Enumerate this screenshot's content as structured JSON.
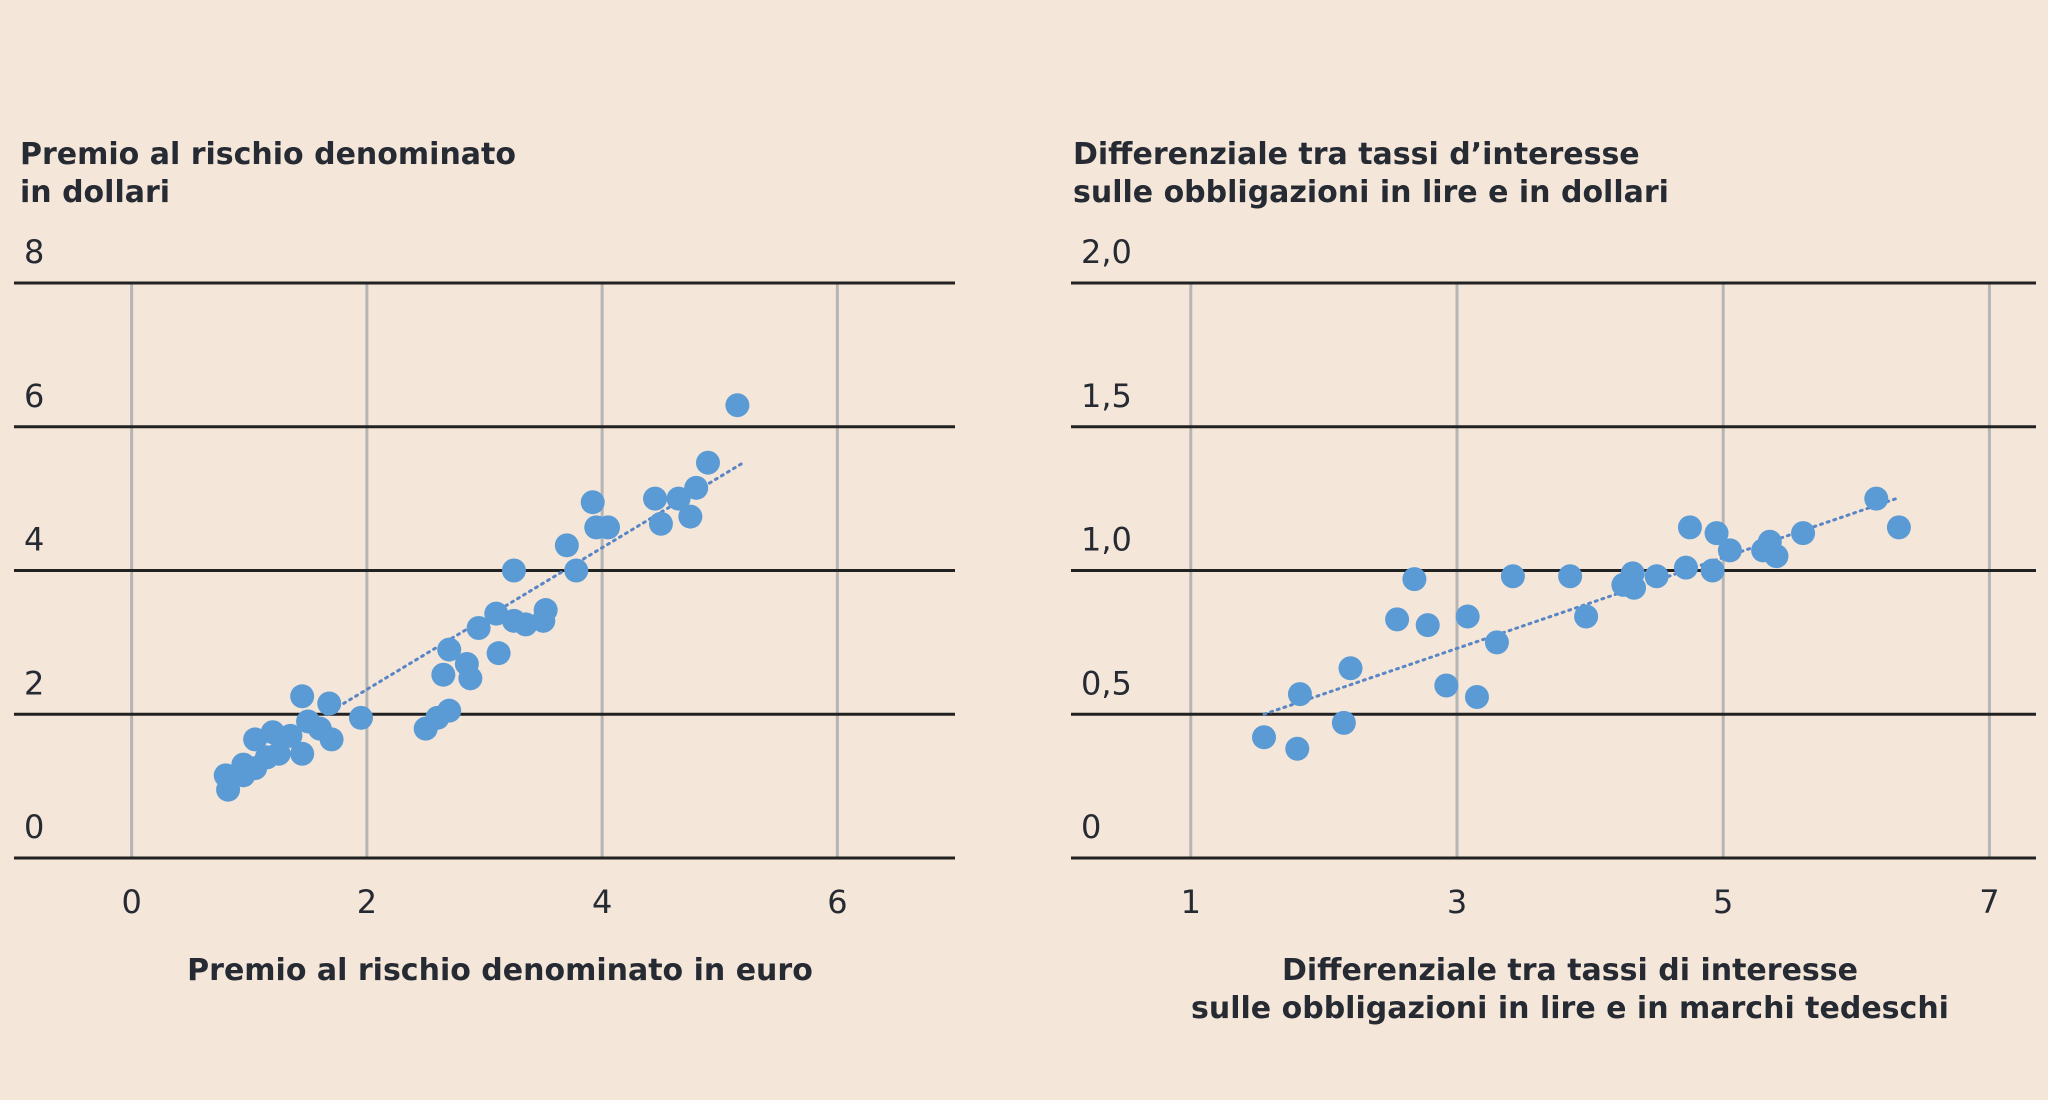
{
  "chart_data": [
    {
      "type": "scatter",
      "ylabel": "Premio al rischio denominato\nin dollari",
      "xlabel": "Premio al rischio denominato in euro",
      "xlim": [
        -1,
        7
      ],
      "ylim": [
        0,
        8
      ],
      "xticks": [
        "0",
        "2",
        "4",
        "6"
      ],
      "yticks": [
        "0",
        "2",
        "4",
        "6",
        "8"
      ],
      "grid": true,
      "trendline": {
        "style": "dotted",
        "x": [
          1.65,
          5.2
        ],
        "y": [
          2.0,
          5.5
        ]
      },
      "points": [
        {
          "x": 0.8,
          "y": 1.15
        },
        {
          "x": 0.82,
          "y": 0.95
        },
        {
          "x": 0.95,
          "y": 1.3
        },
        {
          "x": 0.95,
          "y": 1.15
        },
        {
          "x": 1.05,
          "y": 1.65
        },
        {
          "x": 1.05,
          "y": 1.25
        },
        {
          "x": 1.15,
          "y": 1.4
        },
        {
          "x": 1.2,
          "y": 1.75
        },
        {
          "x": 1.25,
          "y": 1.45
        },
        {
          "x": 1.35,
          "y": 1.7
        },
        {
          "x": 1.45,
          "y": 2.25
        },
        {
          "x": 1.45,
          "y": 1.45
        },
        {
          "x": 1.5,
          "y": 1.9
        },
        {
          "x": 1.6,
          "y": 1.8
        },
        {
          "x": 1.68,
          "y": 2.15
        },
        {
          "x": 1.7,
          "y": 1.65
        },
        {
          "x": 1.95,
          "y": 1.95
        },
        {
          "x": 2.5,
          "y": 1.8
        },
        {
          "x": 2.6,
          "y": 1.95
        },
        {
          "x": 2.65,
          "y": 2.55
        },
        {
          "x": 2.7,
          "y": 2.05
        },
        {
          "x": 2.7,
          "y": 2.9
        },
        {
          "x": 2.85,
          "y": 2.7
        },
        {
          "x": 2.88,
          "y": 2.5
        },
        {
          "x": 2.95,
          "y": 3.2
        },
        {
          "x": 3.1,
          "y": 3.4
        },
        {
          "x": 3.12,
          "y": 2.85
        },
        {
          "x": 3.25,
          "y": 4.0
        },
        {
          "x": 3.25,
          "y": 3.3
        },
        {
          "x": 3.35,
          "y": 3.25
        },
        {
          "x": 3.5,
          "y": 3.3
        },
        {
          "x": 3.52,
          "y": 3.45
        },
        {
          "x": 3.7,
          "y": 4.35
        },
        {
          "x": 3.78,
          "y": 4.0
        },
        {
          "x": 3.92,
          "y": 4.95
        },
        {
          "x": 3.95,
          "y": 4.6
        },
        {
          "x": 4.05,
          "y": 4.6
        },
        {
          "x": 4.45,
          "y": 5.0
        },
        {
          "x": 4.5,
          "y": 4.65
        },
        {
          "x": 4.65,
          "y": 5.0
        },
        {
          "x": 4.75,
          "y": 4.75
        },
        {
          "x": 4.8,
          "y": 5.15
        },
        {
          "x": 4.9,
          "y": 5.5
        },
        {
          "x": 5.15,
          "y": 6.3
        }
      ]
    },
    {
      "type": "scatter",
      "ylabel": "Differenziale tra tassi d’interesse\nsulle obbligazioni in lire e in dollari",
      "xlabel": "Differenziale tra tassi di interesse\nsulle obbligazioni in lire e in marchi tedeschi",
      "xlim": [
        0.1,
        7.35
      ],
      "ylim": [
        0,
        2.0
      ],
      "xticks": [
        "1",
        "3",
        "5",
        "7"
      ],
      "yticks": [
        "0",
        "0,5",
        "1,0",
        "1,5",
        "2,0"
      ],
      "grid": true,
      "trendline": {
        "style": "dotted",
        "x": [
          1.55,
          6.3
        ],
        "y": [
          0.5,
          1.25
        ]
      },
      "points": [
        {
          "x": 1.55,
          "y": 0.42
        },
        {
          "x": 1.8,
          "y": 0.38
        },
        {
          "x": 1.82,
          "y": 0.57
        },
        {
          "x": 2.15,
          "y": 0.47
        },
        {
          "x": 2.2,
          "y": 0.66
        },
        {
          "x": 2.55,
          "y": 0.83
        },
        {
          "x": 2.68,
          "y": 0.97
        },
        {
          "x": 2.78,
          "y": 0.81
        },
        {
          "x": 2.92,
          "y": 0.6
        },
        {
          "x": 3.08,
          "y": 0.84
        },
        {
          "x": 3.15,
          "y": 0.56
        },
        {
          "x": 3.3,
          "y": 0.75
        },
        {
          "x": 3.42,
          "y": 0.98
        },
        {
          "x": 3.85,
          "y": 0.98
        },
        {
          "x": 3.97,
          "y": 0.84
        },
        {
          "x": 4.25,
          "y": 0.95
        },
        {
          "x": 4.32,
          "y": 0.99
        },
        {
          "x": 4.33,
          "y": 0.94
        },
        {
          "x": 4.5,
          "y": 0.98
        },
        {
          "x": 4.72,
          "y": 1.01
        },
        {
          "x": 4.75,
          "y": 1.15
        },
        {
          "x": 4.92,
          "y": 1.0
        },
        {
          "x": 4.95,
          "y": 1.13
        },
        {
          "x": 5.05,
          "y": 1.07
        },
        {
          "x": 5.3,
          "y": 1.07
        },
        {
          "x": 5.35,
          "y": 1.1
        },
        {
          "x": 5.4,
          "y": 1.05
        },
        {
          "x": 5.6,
          "y": 1.13
        },
        {
          "x": 6.15,
          "y": 1.25
        },
        {
          "x": 6.32,
          "y": 1.15
        }
      ]
    }
  ],
  "colors": {
    "points": "#5b9bd5",
    "trendline": "#5a86c6",
    "grid_major": "#222222",
    "grid_minor": "#b5b5b5",
    "background": "#f4e6d8"
  }
}
